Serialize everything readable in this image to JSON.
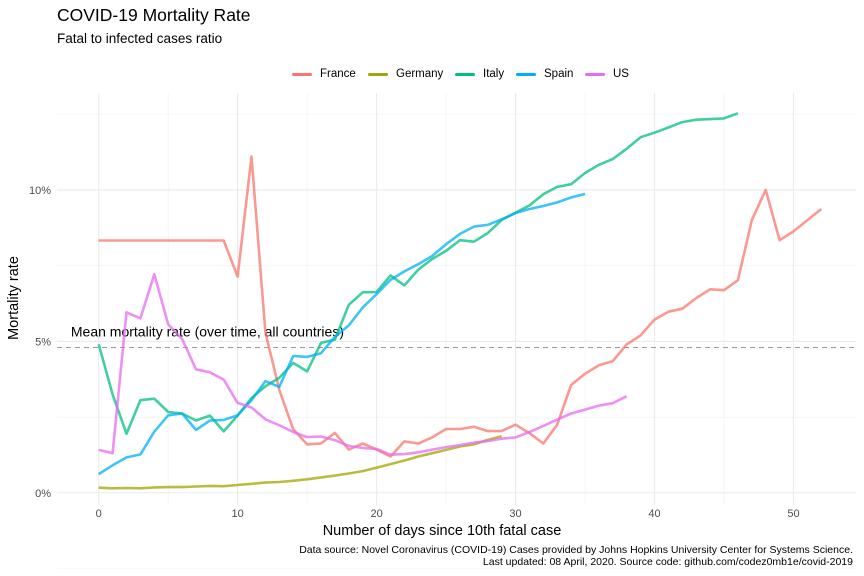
{
  "chart_data": {
    "type": "line",
    "title": "COVID-19 Mortality Rate",
    "subtitle": "Fatal to infected cases ratio",
    "xlabel": "Number of days since 10th fatal case",
    "ylabel": "Mortality rate",
    "xlim": [
      -3,
      54.5
    ],
    "ylim": [
      -0.004,
      0.132
    ],
    "x_ticks": [
      0,
      10,
      20,
      30,
      40,
      50
    ],
    "y_ticks": [
      0,
      0.05,
      0.1
    ],
    "y_tick_labels": [
      "0%",
      "5%",
      "10%"
    ],
    "grid": true,
    "legend_position": "top",
    "reference_line": {
      "label": "Mean mortality rate (over time, all countries)",
      "y": 0.048,
      "style": "dashed"
    },
    "series": [
      {
        "name": "France",
        "color": "#F8766D",
        "points": [
          [
            0,
            0.0833
          ],
          [
            1,
            0.0833
          ],
          [
            2,
            0.0833
          ],
          [
            3,
            0.0833
          ],
          [
            4,
            0.0833
          ],
          [
            5,
            0.0833
          ],
          [
            6,
            0.0833
          ],
          [
            7,
            0.0833
          ],
          [
            8,
            0.0833
          ],
          [
            9,
            0.0833
          ],
          [
            10,
            0.0714
          ],
          [
            11,
            0.111
          ],
          [
            12,
            0.053
          ],
          [
            13,
            0.034
          ],
          [
            14,
            0.021
          ],
          [
            15,
            0.016
          ],
          [
            16,
            0.0163
          ],
          [
            17,
            0.0198
          ],
          [
            18,
            0.0143
          ],
          [
            19,
            0.0163
          ],
          [
            20,
            0.0143
          ],
          [
            21,
            0.012
          ],
          [
            22,
            0.017
          ],
          [
            23,
            0.0163
          ],
          [
            24,
            0.0183
          ],
          [
            25,
            0.0211
          ],
          [
            26,
            0.0211
          ],
          [
            27,
            0.0218
          ],
          [
            28,
            0.0204
          ],
          [
            29,
            0.0204
          ],
          [
            30,
            0.0225
          ],
          [
            31,
            0.0197
          ],
          [
            32,
            0.0163
          ],
          [
            33,
            0.0225
          ],
          [
            34,
            0.0356
          ],
          [
            35,
            0.0393
          ],
          [
            36,
            0.0421
          ],
          [
            37,
            0.0435
          ],
          [
            38,
            0.049
          ],
          [
            39,
            0.052
          ],
          [
            40,
            0.0572
          ],
          [
            41,
            0.0598
          ],
          [
            42,
            0.0608
          ],
          [
            43,
            0.0643
          ],
          [
            44,
            0.0672
          ],
          [
            45,
            0.0669
          ],
          [
            46,
            0.0702
          ],
          [
            47,
            0.09
          ],
          [
            48,
            0.1
          ],
          [
            49,
            0.0834
          ],
          [
            50,
            0.0863
          ],
          [
            52,
            0.0937
          ]
        ]
      },
      {
        "name": "Germany",
        "color": "#A3A500",
        "points": [
          [
            0,
            0.0017
          ],
          [
            1,
            0.0015
          ],
          [
            2,
            0.0016
          ],
          [
            3,
            0.0015
          ],
          [
            4,
            0.0018
          ],
          [
            5,
            0.0019
          ],
          [
            6,
            0.0019
          ],
          [
            7,
            0.0021
          ],
          [
            8,
            0.0023
          ],
          [
            9,
            0.0022
          ],
          [
            10,
            0.0026
          ],
          [
            11,
            0.003
          ],
          [
            12,
            0.0034
          ],
          [
            13,
            0.0036
          ],
          [
            14,
            0.004
          ],
          [
            15,
            0.0045
          ],
          [
            16,
            0.0051
          ],
          [
            17,
            0.0057
          ],
          [
            18,
            0.0064
          ],
          [
            19,
            0.0072
          ],
          [
            20,
            0.0083
          ],
          [
            21,
            0.0095
          ],
          [
            22,
            0.0107
          ],
          [
            23,
            0.012
          ],
          [
            24,
            0.0131
          ],
          [
            25,
            0.0142
          ],
          [
            26,
            0.0153
          ],
          [
            27,
            0.016
          ],
          [
            28,
            0.0175
          ],
          [
            29,
            0.0187
          ]
        ]
      },
      {
        "name": "Italy",
        "color": "#00BF7D",
        "points": [
          [
            0,
            0.049
          ],
          [
            1,
            0.0325
          ],
          [
            2,
            0.0195
          ],
          [
            3,
            0.0306
          ],
          [
            4,
            0.0311
          ],
          [
            5,
            0.0267
          ],
          [
            6,
            0.0262
          ],
          [
            7,
            0.0239
          ],
          [
            8,
            0.0255
          ],
          [
            9,
            0.0203
          ],
          [
            10,
            0.0255
          ],
          [
            11,
            0.0313
          ],
          [
            12,
            0.0352
          ],
          [
            13,
            0.038
          ],
          [
            14,
            0.0429
          ],
          [
            15,
            0.0401
          ],
          [
            16,
            0.0495
          ],
          [
            17,
            0.0506
          ],
          [
            18,
            0.0621
          ],
          [
            19,
            0.0662
          ],
          [
            20,
            0.0663
          ],
          [
            21,
            0.0718
          ],
          [
            22,
            0.0685
          ],
          [
            23,
            0.0737
          ],
          [
            24,
            0.0772
          ],
          [
            25,
            0.0799
          ],
          [
            26,
            0.0834
          ],
          [
            27,
            0.0829
          ],
          [
            28,
            0.0858
          ],
          [
            29,
            0.0901
          ],
          [
            30,
            0.0925
          ],
          [
            31,
            0.0949
          ],
          [
            32,
            0.0986
          ],
          [
            33,
            0.101
          ],
          [
            34,
            0.1019
          ],
          [
            35,
            0.1056
          ],
          [
            36,
            0.1083
          ],
          [
            37,
            0.1102
          ],
          [
            38,
            0.1136
          ],
          [
            39,
            0.1174
          ],
          [
            40,
            0.1189
          ],
          [
            41,
            0.1206
          ],
          [
            42,
            0.1224
          ],
          [
            43,
            0.1232
          ],
          [
            44,
            0.1234
          ],
          [
            45,
            0.1236
          ],
          [
            46,
            0.1253
          ]
        ]
      },
      {
        "name": "Spain",
        "color": "#00B0F6",
        "points": [
          [
            0,
            0.0062
          ],
          [
            1,
            0.0091
          ],
          [
            2,
            0.0117
          ],
          [
            3,
            0.0127
          ],
          [
            4,
            0.0202
          ],
          [
            5,
            0.0256
          ],
          [
            6,
            0.0262
          ],
          [
            7,
            0.0208
          ],
          [
            8,
            0.0239
          ],
          [
            9,
            0.0241
          ],
          [
            10,
            0.0256
          ],
          [
            11,
            0.0306
          ],
          [
            12,
            0.0369
          ],
          [
            13,
            0.035
          ],
          [
            14,
            0.0452
          ],
          [
            15,
            0.0449
          ],
          [
            16,
            0.0461
          ],
          [
            17,
            0.0515
          ],
          [
            18,
            0.0553
          ],
          [
            19,
            0.0612
          ],
          [
            20,
            0.0656
          ],
          [
            21,
            0.0703
          ],
          [
            22,
            0.0731
          ],
          [
            23,
            0.0755
          ],
          [
            24,
            0.0782
          ],
          [
            25,
            0.0821
          ],
          [
            26,
            0.0855
          ],
          [
            27,
            0.0879
          ],
          [
            28,
            0.0885
          ],
          [
            29,
            0.0903
          ],
          [
            30,
            0.0924
          ],
          [
            31,
            0.0937
          ],
          [
            32,
            0.0947
          ],
          [
            33,
            0.0959
          ],
          [
            34,
            0.0975
          ],
          [
            35,
            0.0987
          ]
        ]
      },
      {
        "name": "US",
        "color": "#E76BF3",
        "points": [
          [
            0,
            0.0142
          ],
          [
            1,
            0.0131
          ],
          [
            2,
            0.0596
          ],
          [
            3,
            0.0576
          ],
          [
            4,
            0.0722
          ],
          [
            5,
            0.0556
          ],
          [
            6,
            0.0508
          ],
          [
            7,
            0.0408
          ],
          [
            8,
            0.0398
          ],
          [
            9,
            0.0374
          ],
          [
            10,
            0.0297
          ],
          [
            11,
            0.0282
          ],
          [
            12,
            0.0243
          ],
          [
            13,
            0.0223
          ],
          [
            14,
            0.0201
          ],
          [
            15,
            0.0184
          ],
          [
            16,
            0.0186
          ],
          [
            17,
            0.0174
          ],
          [
            18,
            0.0155
          ],
          [
            19,
            0.0148
          ],
          [
            20,
            0.0145
          ],
          [
            21,
            0.0126
          ],
          [
            22,
            0.0128
          ],
          [
            23,
            0.0134
          ],
          [
            24,
            0.0143
          ],
          [
            25,
            0.0151
          ],
          [
            26,
            0.0158
          ],
          [
            27,
            0.0166
          ],
          [
            28,
            0.0171
          ],
          [
            29,
            0.0179
          ],
          [
            30,
            0.0183
          ],
          [
            31,
            0.0201
          ],
          [
            32,
            0.0221
          ],
          [
            33,
            0.0242
          ],
          [
            34,
            0.0262
          ],
          [
            35,
            0.0275
          ],
          [
            36,
            0.0288
          ],
          [
            37,
            0.0296
          ],
          [
            38,
            0.0319
          ]
        ]
      }
    ],
    "caption": [
      "Data source: Novel Coronavirus (COVID-19) Cases provided by Johns Hopkins University Center for Systems Science.",
      "Last updated: 08 April, 2020. Source code: github.com/codez0mb1e/covid-2019"
    ]
  }
}
